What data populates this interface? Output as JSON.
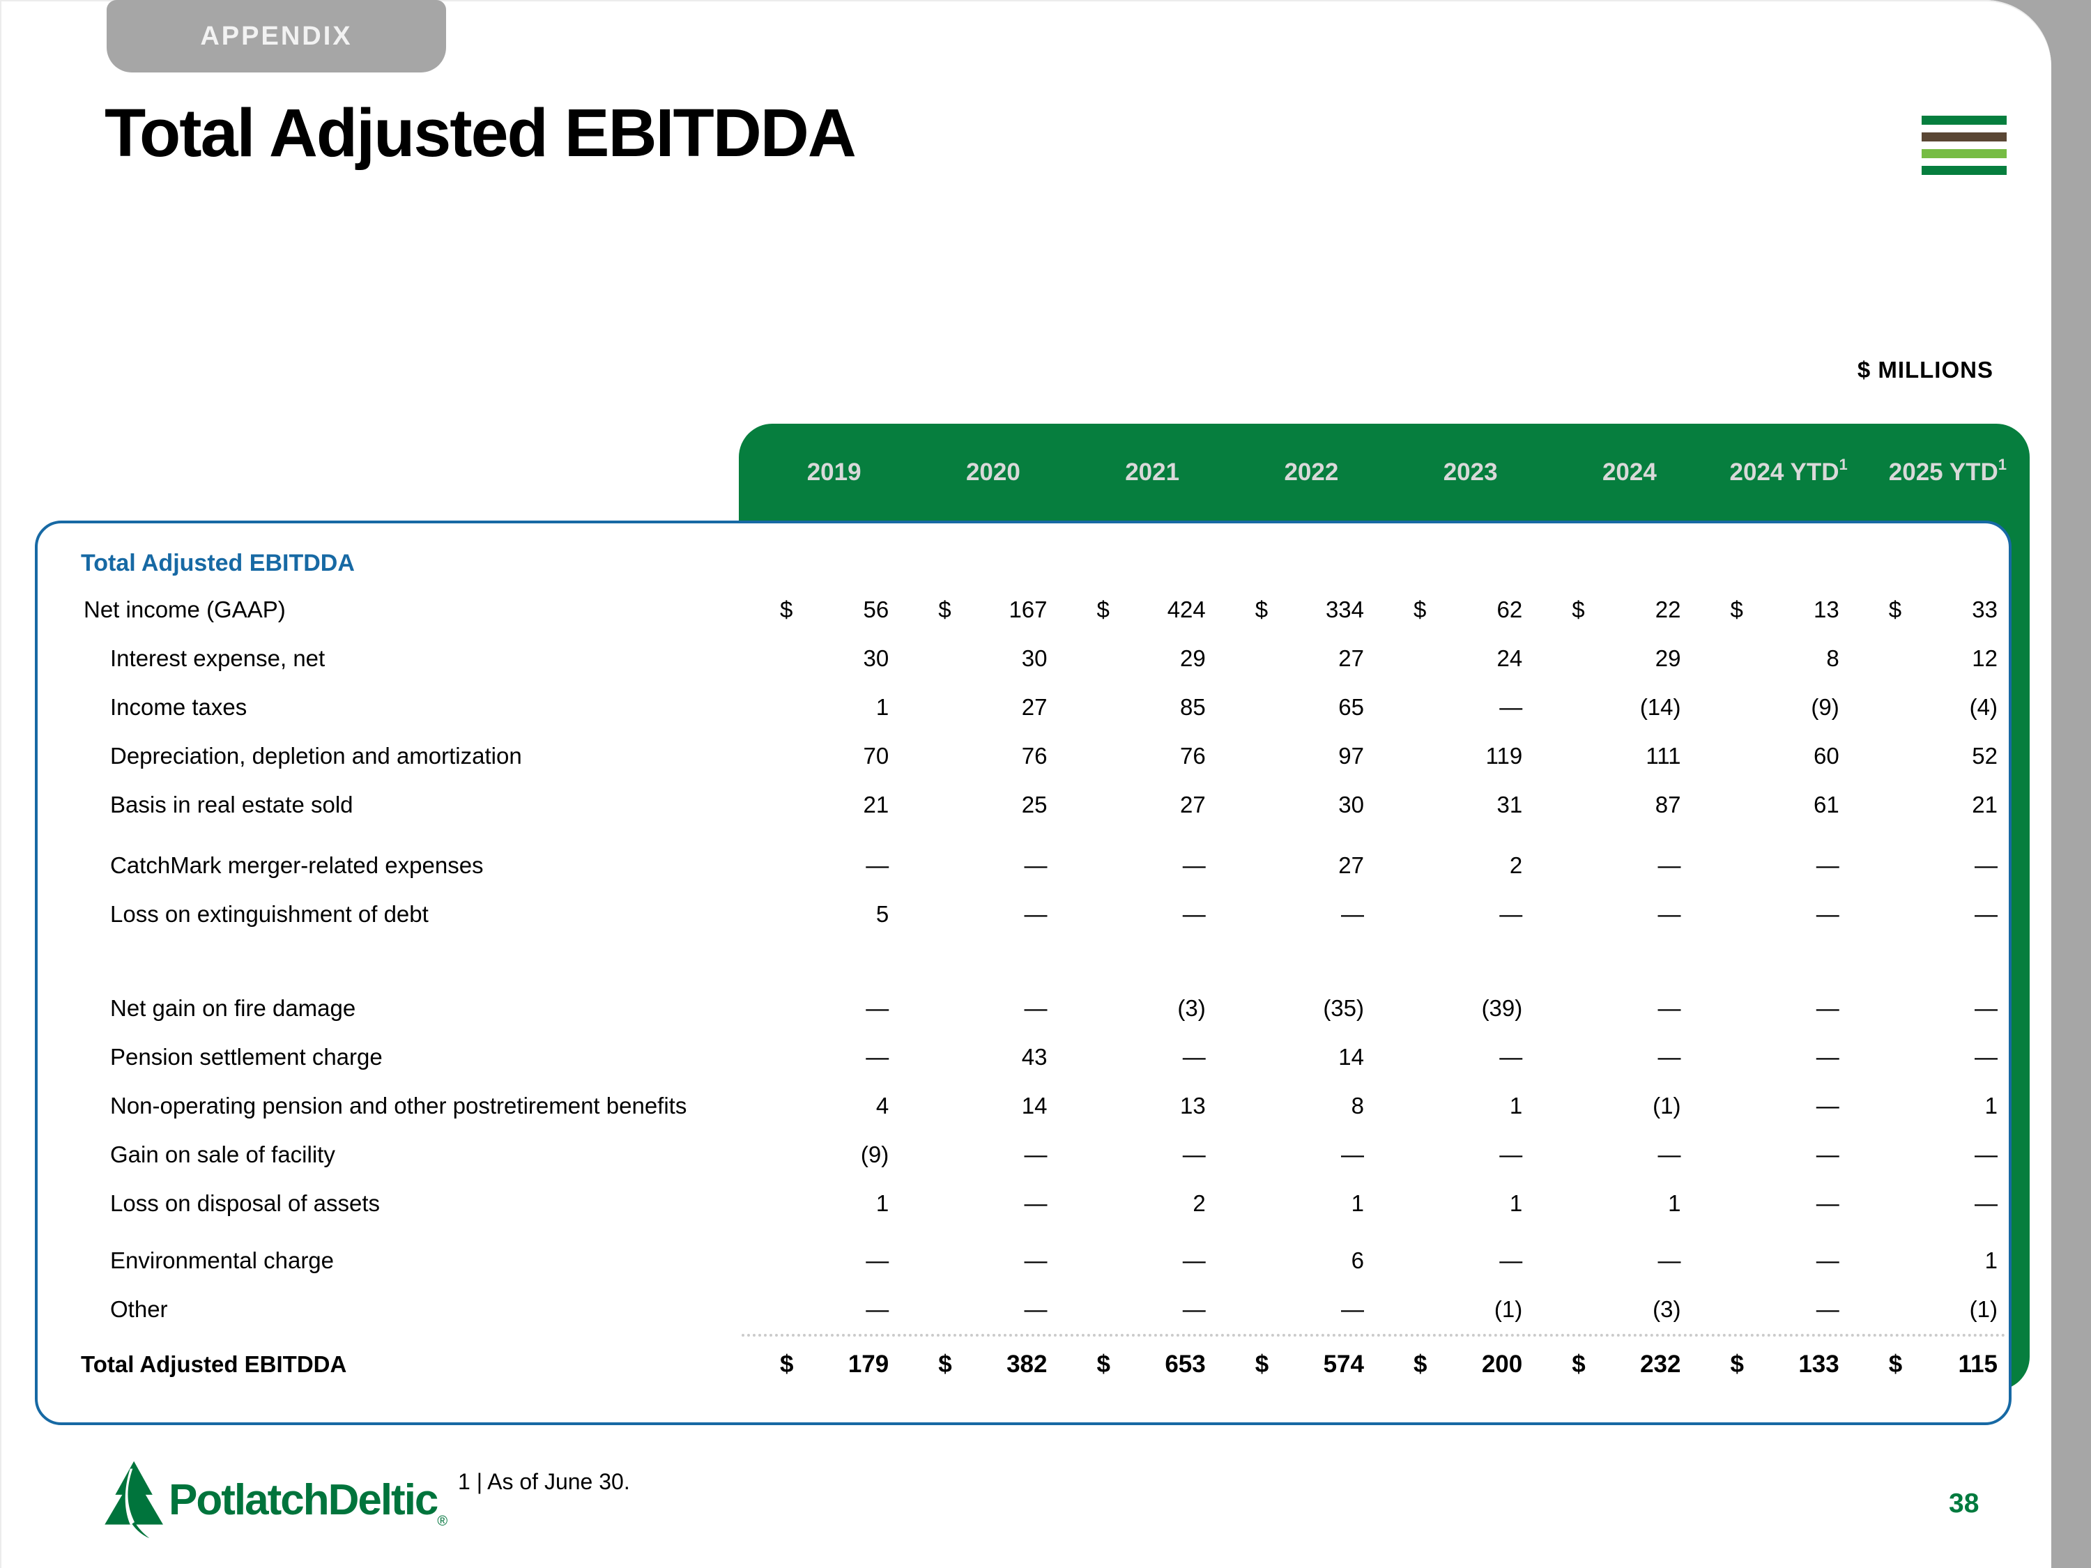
{
  "slide": {
    "tab_label": "APPENDIX",
    "title": "Total Adjusted EBITDDA",
    "units_label": "$ MILLIONS",
    "footnote": "1 | As of June 30.",
    "page_number": "38",
    "logo_text": "PotlatchDeltic",
    "logo_reg_mark": "®"
  },
  "colors": {
    "green": "#067e3e",
    "light_green": "#76bc43",
    "brown": "#5a4634",
    "blue": "#1769a4",
    "gray": "#a6a6a6",
    "header_text": "#d9d9d9"
  },
  "table": {
    "section_heading": "Total Adjusted EBITDDA",
    "dollar_sign": "$",
    "columns": [
      {
        "label": "2019",
        "sup": ""
      },
      {
        "label": "2020",
        "sup": ""
      },
      {
        "label": "2021",
        "sup": ""
      },
      {
        "label": "2022",
        "sup": ""
      },
      {
        "label": "2023",
        "sup": ""
      },
      {
        "label": "2024",
        "sup": ""
      },
      {
        "label": "2024 YTD",
        "sup": "1"
      },
      {
        "label": "2025 YTD",
        "sup": "1"
      }
    ],
    "rows": [
      {
        "label": "Net income (GAAP)",
        "indent": 1,
        "dollar": true,
        "gap_before": 12,
        "values": [
          "56",
          "167",
          "424",
          "334",
          "62",
          "22",
          "13",
          "33"
        ]
      },
      {
        "label": "Interest expense, net",
        "indent": 2,
        "dollar": false,
        "gap_before": 0,
        "values": [
          "30",
          "30",
          "29",
          "27",
          "24",
          "29",
          "8",
          "12"
        ]
      },
      {
        "label": "Income taxes",
        "indent": 2,
        "dollar": false,
        "gap_before": 0,
        "values": [
          "1",
          "27",
          "85",
          "65",
          "—",
          "(14)",
          "(9)",
          "(4)"
        ]
      },
      {
        "label": "Depreciation, depletion and amortization",
        "indent": 2,
        "dollar": false,
        "gap_before": 0,
        "values": [
          "70",
          "76",
          "76",
          "97",
          "119",
          "111",
          "60",
          "52"
        ]
      },
      {
        "label": "Basis in real estate sold",
        "indent": 2,
        "dollar": false,
        "gap_before": 0,
        "values": [
          "21",
          "25",
          "27",
          "30",
          "31",
          "87",
          "61",
          "21"
        ]
      },
      {
        "label": "CatchMark merger-related expenses",
        "indent": 2,
        "dollar": false,
        "gap_before": 17,
        "values": [
          "—",
          "—",
          "—",
          "27",
          "2",
          "—",
          "—",
          "—"
        ]
      },
      {
        "label": "Loss on extinguishment of debt",
        "indent": 2,
        "dollar": false,
        "gap_before": 0,
        "values": [
          "5",
          "—",
          "—",
          "—",
          "—",
          "—",
          "—",
          "—"
        ]
      },
      {
        "label": "Net gain on fire damage",
        "indent": 2,
        "dollar": false,
        "gap_before": 65,
        "values": [
          "—",
          "—",
          "(3)",
          "(35)",
          "(39)",
          "—",
          "—",
          "—"
        ]
      },
      {
        "label": "Pension settlement charge",
        "indent": 2,
        "dollar": false,
        "gap_before": 0,
        "values": [
          "—",
          "43",
          "—",
          "14",
          "—",
          "—",
          "—",
          "—"
        ]
      },
      {
        "label": "Non-operating pension and other postretirement benefits",
        "indent": 2,
        "dollar": false,
        "gap_before": 0,
        "values": [
          "4",
          "14",
          "13",
          "8",
          "1",
          "(1)",
          "—",
          "1"
        ]
      },
      {
        "label": "Gain on sale of facility",
        "indent": 2,
        "dollar": false,
        "gap_before": 0,
        "values": [
          "(9)",
          "—",
          "—",
          "—",
          "—",
          "—",
          "—",
          "—"
        ]
      },
      {
        "label": "Loss on disposal of assets",
        "indent": 2,
        "dollar": false,
        "gap_before": 0,
        "values": [
          "1",
          "—",
          "2",
          "1",
          "1",
          "1",
          "—",
          "—"
        ]
      },
      {
        "label": "Environmental charge",
        "indent": 2,
        "dollar": false,
        "gap_before": 12,
        "values": [
          "—",
          "—",
          "—",
          "6",
          "—",
          "—",
          "—",
          "1"
        ]
      },
      {
        "label": "Other",
        "indent": 2,
        "dollar": false,
        "gap_before": 0,
        "values": [
          "—",
          "—",
          "—",
          "—",
          "(1)",
          "(3)",
          "—",
          "(1)"
        ]
      }
    ],
    "total_row": {
      "label": "Total Adjusted EBITDDA",
      "dollar": true,
      "values": [
        "179",
        "382",
        "653",
        "574",
        "200",
        "232",
        "133",
        "115"
      ]
    }
  }
}
